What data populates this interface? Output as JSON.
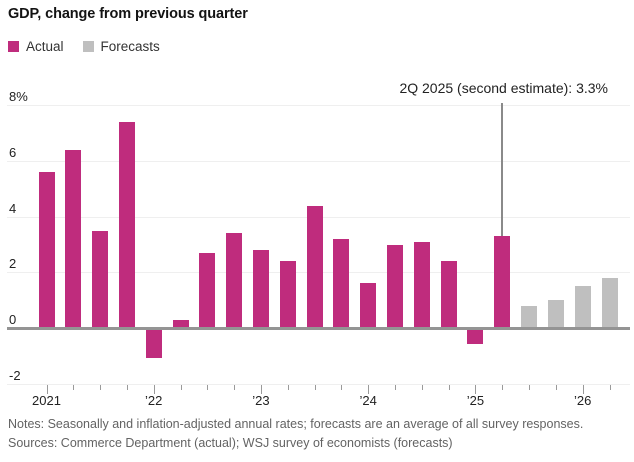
{
  "title": "GDP, change from previous quarter",
  "legend": [
    {
      "label": "Actual",
      "color": "#bf2c7d",
      "icon": "actual-swatch-icon"
    },
    {
      "label": "Forecasts",
      "color": "#bfbfbf",
      "icon": "forecasts-swatch-icon"
    }
  ],
  "annotation": {
    "text": "2Q 2025 (second estimate): 3.3%"
  },
  "chart_data": {
    "type": "bar",
    "title": "GDP, change from previous quarter",
    "unit": "percent, seasonally and inflation-adjusted annual rate",
    "categories": [
      "1Q 2021",
      "2Q 2021",
      "3Q 2021",
      "4Q 2021",
      "1Q 2022",
      "2Q 2022",
      "3Q 2022",
      "4Q 2022",
      "1Q 2023",
      "2Q 2023",
      "3Q 2023",
      "4Q 2023",
      "1Q 2024",
      "2Q 2024",
      "3Q 2024",
      "4Q 2024",
      "1Q 2025",
      "2Q 2025",
      "3Q 2025",
      "4Q 2025",
      "1Q 2026",
      "2Q 2026"
    ],
    "series": [
      {
        "name": "Actual",
        "color": "#bf2c7d",
        "values": [
          5.6,
          6.4,
          3.5,
          7.4,
          -1.0,
          0.3,
          2.7,
          3.4,
          2.8,
          2.4,
          4.4,
          3.2,
          1.6,
          3.0,
          3.1,
          2.4,
          -0.5,
          3.3,
          null,
          null,
          null,
          null
        ]
      },
      {
        "name": "Forecasts",
        "color": "#bfbfbf",
        "values": [
          null,
          null,
          null,
          null,
          null,
          null,
          null,
          null,
          null,
          null,
          null,
          null,
          null,
          null,
          null,
          null,
          null,
          null,
          0.8,
          1.0,
          1.5,
          1.8
        ]
      }
    ],
    "annotated_point": {
      "category": "2Q 2025",
      "value": 3.3,
      "label": "2Q 2025 (second estimate): 3.3%"
    },
    "y_ticks": [
      {
        "value": 8,
        "label": "8%"
      },
      {
        "value": 6,
        "label": "6"
      },
      {
        "value": 4,
        "label": "4"
      },
      {
        "value": 2,
        "label": "2"
      },
      {
        "value": 0,
        "label": "0"
      },
      {
        "value": -2,
        "label": "-2"
      }
    ],
    "ylim": [
      -2,
      8
    ],
    "x_year_labels": [
      "2021",
      "’22",
      "’23",
      "’24",
      "’25",
      "’26"
    ],
    "grid": true,
    "legend_position": "top-left"
  },
  "notes": "Notes: Seasonally and inflation-adjusted annual rates; forecasts are an average of all survey responses.",
  "sources": "Sources: Commerce Department (actual); WSJ survey of economists (forecasts)"
}
